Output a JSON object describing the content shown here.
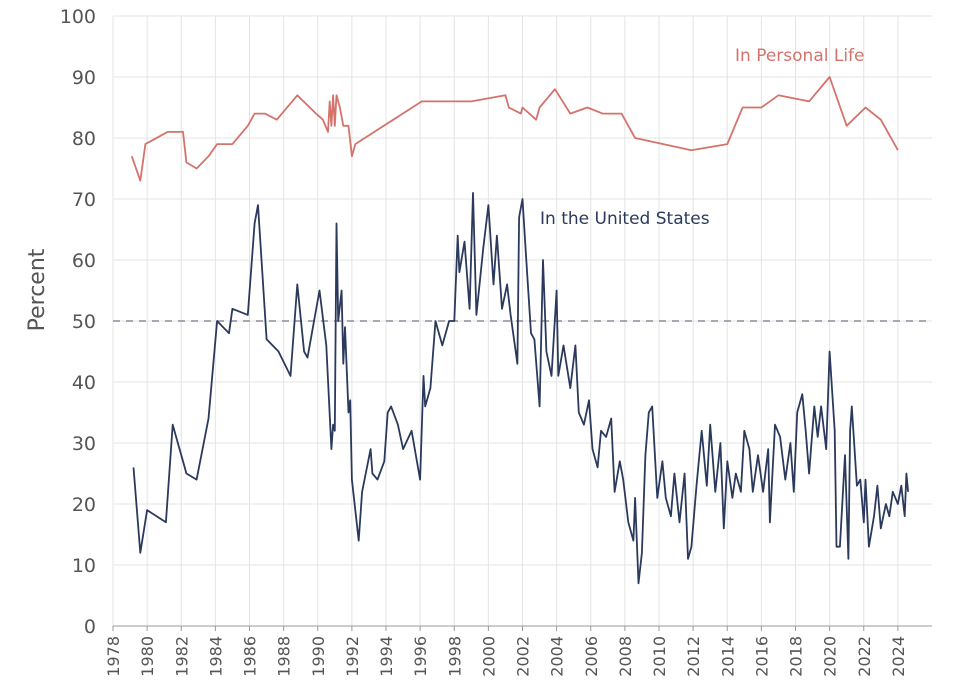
{
  "chart_data": {
    "type": "line",
    "y_label": "Percent",
    "xlim": [
      1978,
      2026
    ],
    "ylim": [
      0,
      100
    ],
    "xticks": [
      1978,
      1980,
      1982,
      1984,
      1986,
      1988,
      1990,
      1992,
      1994,
      1996,
      1998,
      2000,
      2002,
      2004,
      2006,
      2008,
      2010,
      2012,
      2014,
      2016,
      2018,
      2020,
      2022,
      2024
    ],
    "yticks": [
      0,
      10,
      20,
      30,
      40,
      50,
      60,
      70,
      80,
      90,
      100
    ],
    "grid": true,
    "reference_line": {
      "value": 50,
      "color": "#8c8c9c"
    },
    "series": [
      {
        "name": "In Personal Life",
        "color": "#d4736b",
        "x": [
          1979.1,
          1979.6,
          1979.9,
          1981.2,
          1982.1,
          1982.3,
          1982.9,
          1983.6,
          1984.1,
          1985,
          1985.9,
          1986.3,
          1986.9,
          1987.6,
          1988.8,
          1989.9,
          1990.3,
          1990.6,
          1990.7,
          1990.8,
          1990.9,
          1991.0,
          1991.1,
          1991.3,
          1991.5,
          1991.8,
          1992.0,
          1992.2,
          1996.1,
          1999.0,
          2001.0,
          2001.2,
          2001.9,
          2002.0,
          2002.8,
          2003.0,
          2003.9,
          2004.8,
          2005.8,
          2006.7,
          2007.8,
          2008.6,
          2011.9,
          2014,
          2014.9,
          2016,
          2017,
          2018.8,
          2020.0,
          2021.0,
          2022.1,
          2023,
          2024
        ],
        "values": [
          77,
          73,
          79,
          81,
          81,
          76,
          75,
          77,
          79,
          79,
          82,
          84,
          84,
          83,
          87,
          84,
          83,
          81,
          86,
          82,
          87,
          82,
          87,
          85,
          82,
          82,
          77,
          79,
          86,
          86,
          87,
          85,
          84,
          85,
          83,
          85,
          88,
          84,
          85,
          84,
          84,
          80,
          78,
          79,
          85,
          85,
          87,
          86,
          90,
          82,
          85,
          83,
          78
        ]
      },
      {
        "name": "In the United States",
        "color": "#2b3a5c",
        "x": [
          1979.2,
          1979.6,
          1980,
          1981.1,
          1981.5,
          1982.1,
          1982.3,
          1982.9,
          1983.6,
          1984.1,
          1984.8,
          1985,
          1985.9,
          1986.3,
          1986.5,
          1987,
          1987.7,
          1988.4,
          1988.8,
          1989.2,
          1989.4,
          1990.1,
          1990.5,
          1990.8,
          1990.9,
          1991,
          1991.1,
          1991.2,
          1991.4,
          1991.5,
          1991.6,
          1991.8,
          1991.9,
          1992,
          1992.2,
          1992.4,
          1992.6,
          1993.1,
          1993.2,
          1993.5,
          1993.9,
          1994.1,
          1994.3,
          1994.7,
          1995,
          1995.5,
          1996,
          1996.2,
          1996.3,
          1996.6,
          1996.9,
          1997.3,
          1997.7,
          1998,
          1998.2,
          1998.3,
          1998.6,
          1998.9,
          1999.1,
          1999.3,
          1999.7,
          2000,
          2000.3,
          2000.5,
          2000.8,
          2001.1,
          2001.3,
          2001.5,
          2001.7,
          2001.8,
          2002,
          2002.2,
          2002.5,
          2002.7,
          2003,
          2003.2,
          2003.4,
          2003.7,
          2004,
          2004.1,
          2004.4,
          2004.8,
          2005.1,
          2005.3,
          2005.6,
          2005.9,
          2006.1,
          2006.4,
          2006.6,
          2006.9,
          2007.2,
          2007.4,
          2007.7,
          2007.9,
          2008.2,
          2008.5,
          2008.6,
          2008.8,
          2009,
          2009.2,
          2009.4,
          2009.6,
          2009.9,
          2010.2,
          2010.4,
          2010.7,
          2010.9,
          2011.2,
          2011.5,
          2011.7,
          2011.9,
          2012.2,
          2012.5,
          2012.8,
          2013,
          2013.3,
          2013.6,
          2013.8,
          2014,
          2014.3,
          2014.5,
          2014.8,
          2015,
          2015.3,
          2015.5,
          2015.8,
          2016.1,
          2016.4,
          2016.5,
          2016.8,
          2017.1,
          2017.4,
          2017.7,
          2017.9,
          2018.1,
          2018.4,
          2018.6,
          2018.8,
          2019.1,
          2019.3,
          2019.5,
          2019.8,
          2020,
          2020.3,
          2020.4,
          2020.6,
          2020.9,
          2021.1,
          2021.2,
          2021.3,
          2021.6,
          2021.8,
          2022,
          2022.1,
          2022.3,
          2022.6,
          2022.8,
          2023,
          2023.3,
          2023.5,
          2023.7,
          2024,
          2024.2,
          2024.4,
          2024.5,
          2024.6
        ],
        "values": [
          26,
          12,
          19,
          17,
          33,
          27,
          25,
          24,
          34,
          50,
          48,
          52,
          51,
          66,
          69,
          47,
          45,
          41,
          56,
          45,
          44,
          55,
          46,
          29,
          33,
          32,
          66,
          50,
          55,
          43,
          49,
          35,
          37,
          24,
          19,
          14,
          22,
          29,
          25,
          24,
          27,
          35,
          36,
          33,
          29,
          32,
          24,
          41,
          36,
          39,
          50,
          46,
          50,
          50,
          64,
          58,
          63,
          52,
          71,
          51,
          62,
          69,
          56,
          64,
          52,
          56,
          51,
          47,
          43,
          67,
          70,
          61,
          48,
          47,
          36,
          60,
          45,
          41,
          55,
          41,
          46,
          39,
          46,
          35,
          33,
          37,
          29,
          26,
          32,
          31,
          34,
          22,
          27,
          24,
          17,
          14,
          21,
          7,
          12,
          28,
          35,
          36,
          21,
          27,
          21,
          18,
          25,
          17,
          25,
          11,
          13,
          23,
          32,
          23,
          33,
          22,
          30,
          16,
          27,
          21,
          25,
          22,
          32,
          29,
          22,
          28,
          22,
          29,
          17,
          33,
          31,
          24,
          30,
          22,
          35,
          38,
          32,
          25,
          36,
          31,
          36,
          29,
          45,
          32,
          13,
          13,
          28,
          11,
          32,
          36,
          23,
          24,
          17,
          24,
          13,
          18,
          23,
          16,
          20,
          18,
          22,
          20,
          23,
          18,
          25,
          22
        ]
      }
    ]
  }
}
